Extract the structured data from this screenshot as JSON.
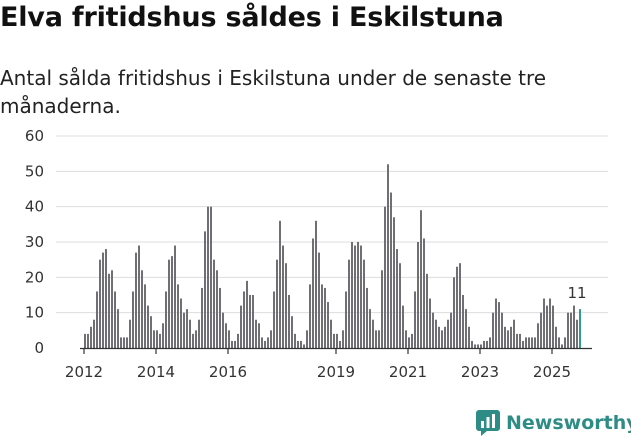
{
  "title": "Elva fritidshus såldes i Eskilstuna",
  "subtitle": "Antal sålda fritidshus i Eskilstuna under de senaste tre månaderna.",
  "brand": "Newsworthy",
  "colors": {
    "bar": "#6f6f74",
    "highlight": "#2e9c96",
    "grid": "#dddddd",
    "axis": "#333333",
    "brand": "#2e8c86"
  },
  "chart_data": {
    "type": "bar",
    "grid": true,
    "ylim": [
      0,
      60
    ],
    "yticks": [
      0,
      10,
      20,
      30,
      40,
      50,
      60
    ],
    "xticks": [
      {
        "label": "2012",
        "index": 0
      },
      {
        "label": "2014",
        "index": 24
      },
      {
        "label": "2016",
        "index": 48
      },
      {
        "label": "2019",
        "index": 84
      },
      {
        "label": "2021",
        "index": 108
      },
      {
        "label": "2023",
        "index": 132
      },
      {
        "label": "2025",
        "index": 156
      }
    ],
    "start": "2012-01",
    "values": [
      4,
      4,
      6,
      8,
      16,
      25,
      27,
      28,
      21,
      22,
      16,
      11,
      3,
      3,
      3,
      8,
      16,
      27,
      29,
      22,
      18,
      12,
      9,
      5,
      5,
      4,
      7,
      16,
      25,
      26,
      29,
      18,
      14,
      10,
      11,
      8,
      4,
      5,
      8,
      17,
      33,
      40,
      40,
      25,
      22,
      17,
      10,
      7,
      5,
      2,
      2,
      4,
      12,
      16,
      19,
      15,
      15,
      8,
      7,
      3,
      2,
      3,
      5,
      16,
      25,
      36,
      29,
      24,
      15,
      9,
      4,
      2,
      2,
      1,
      5,
      18,
      31,
      36,
      27,
      18,
      17,
      13,
      8,
      4,
      4,
      2,
      5,
      16,
      25,
      30,
      29,
      30,
      29,
      25,
      17,
      11,
      8,
      5,
      5,
      22,
      40,
      52,
      44,
      37,
      28,
      24,
      12,
      5,
      3,
      4,
      16,
      30,
      39,
      31,
      21,
      14,
      10,
      8,
      6,
      5,
      6,
      8,
      10,
      20,
      23,
      24,
      15,
      11,
      6,
      2,
      1,
      1,
      1,
      2,
      2,
      3,
      10,
      14,
      13,
      10,
      6,
      5,
      6,
      8,
      4,
      4,
      2,
      3,
      3,
      3,
      3,
      7,
      10,
      14,
      12,
      14,
      12,
      6,
      3,
      1,
      3,
      10,
      10,
      12,
      8,
      11
    ],
    "last_label": "11"
  }
}
